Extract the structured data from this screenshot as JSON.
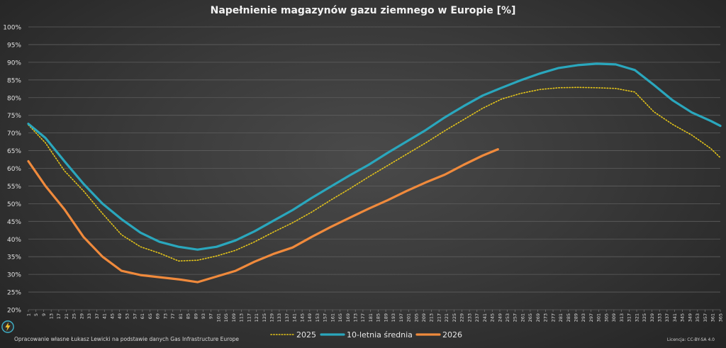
{
  "footer": {
    "source": "Opracowanie własne Łukasz Lewicki na podstawie danych Gas Infrastructure Europe",
    "license": "Licencja: CC-BY-SA 4.0"
  },
  "chart_data": {
    "type": "line",
    "title": "Napełnienie magazynów gazu ziemnego w Europie [%]",
    "xlabel": "",
    "ylabel": "",
    "xlim": [
      1,
      365
    ],
    "ylim": [
      20,
      100
    ],
    "y_ticks": [
      "20%",
      "25%",
      "30%",
      "35%",
      "40%",
      "45%",
      "50%",
      "55%",
      "60%",
      "65%",
      "70%",
      "75%",
      "80%",
      "85%",
      "90%",
      "95%",
      "100%"
    ],
    "x_ticks": [
      1,
      5,
      9,
      13,
      17,
      21,
      25,
      29,
      33,
      37,
      41,
      45,
      49,
      53,
      57,
      61,
      65,
      69,
      73,
      77,
      81,
      85,
      89,
      93,
      97,
      101,
      105,
      109,
      113,
      117,
      121,
      125,
      129,
      133,
      137,
      141,
      145,
      149,
      153,
      157,
      161,
      165,
      169,
      173,
      177,
      181,
      185,
      189,
      193,
      197,
      201,
      205,
      209,
      213,
      217,
      221,
      225,
      229,
      233,
      237,
      241,
      245,
      249,
      253,
      257,
      261,
      265,
      269,
      273,
      277,
      281,
      285,
      289,
      293,
      297,
      301,
      305,
      309,
      313,
      317,
      321,
      325,
      329,
      333,
      337,
      341,
      345,
      349,
      353,
      357,
      361,
      365
    ],
    "grid": true,
    "legend": "bottom-center",
    "series": [
      {
        "name": "2025",
        "color": "#e6c619",
        "style": "dotted",
        "x": [
          1,
          10,
          20,
          30,
          40,
          50,
          60,
          70,
          80,
          90,
          100,
          110,
          120,
          130,
          140,
          150,
          160,
          170,
          180,
          190,
          200,
          210,
          220,
          230,
          240,
          250,
          260,
          270,
          280,
          290,
          300,
          310,
          320,
          330,
          340,
          350,
          360,
          365
        ],
        "y": [
          72.3,
          67.2,
          59.3,
          53.6,
          47.2,
          41.2,
          37.8,
          36.0,
          33.8,
          34.0,
          35.2,
          36.8,
          39.2,
          42.0,
          44.6,
          47.6,
          51.0,
          54.2,
          57.6,
          60.8,
          64.0,
          67.2,
          70.6,
          73.8,
          77.0,
          79.6,
          81.2,
          82.3,
          82.8,
          82.9,
          82.8,
          82.6,
          81.6,
          76.0,
          72.4,
          69.4,
          65.6,
          63.0
        ]
      },
      {
        "name": "10-letnia średnia",
        "color": "#2aa7bd",
        "style": "solid",
        "x": [
          1,
          10,
          20,
          30,
          40,
          50,
          60,
          70,
          80,
          90,
          100,
          110,
          120,
          130,
          140,
          150,
          160,
          170,
          180,
          190,
          200,
          210,
          220,
          230,
          240,
          250,
          260,
          270,
          280,
          290,
          300,
          310,
          320,
          330,
          340,
          350,
          360,
          365
        ],
        "y": [
          72.6,
          68.6,
          62.0,
          55.6,
          50.0,
          45.6,
          41.8,
          39.2,
          37.8,
          37.0,
          37.8,
          39.6,
          42.2,
          45.2,
          48.2,
          51.6,
          54.8,
          58.0,
          61.0,
          64.4,
          67.6,
          70.8,
          74.4,
          77.6,
          80.6,
          82.8,
          84.9,
          86.8,
          88.4,
          89.2,
          89.6,
          89.4,
          87.8,
          83.6,
          79.2,
          75.8,
          73.4,
          72.0
        ]
      },
      {
        "name": "2026",
        "color": "#f08a3c",
        "style": "solid",
        "x": [
          1,
          10,
          20,
          30,
          40,
          50,
          60,
          70,
          80,
          90,
          100,
          110,
          120,
          130,
          140,
          150,
          160,
          170,
          180,
          190,
          200,
          210,
          220,
          230,
          240,
          248
        ],
        "y": [
          62.0,
          55.0,
          48.4,
          40.6,
          35.0,
          31.0,
          29.8,
          29.2,
          28.6,
          27.8,
          29.4,
          31.0,
          33.6,
          35.8,
          37.6,
          40.6,
          43.4,
          46.0,
          48.6,
          51.0,
          53.6,
          56.0,
          58.2,
          61.0,
          63.6,
          65.4
        ]
      }
    ]
  }
}
